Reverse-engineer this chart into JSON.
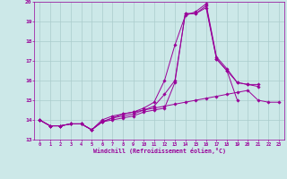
{
  "xlabel": "Windchill (Refroidissement éolien,°C)",
  "bg_color": "#cce8e8",
  "grid_color": "#aacccc",
  "line_color": "#990099",
  "xlim_min": -0.5,
  "xlim_max": 23.5,
  "ylim_min": 13,
  "ylim_max": 20,
  "xticks": [
    0,
    1,
    2,
    3,
    4,
    5,
    6,
    7,
    8,
    9,
    10,
    11,
    12,
    13,
    14,
    15,
    16,
    17,
    18,
    19,
    20,
    21,
    22,
    23
  ],
  "yticks": [
    13,
    14,
    15,
    16,
    17,
    18,
    19,
    20
  ],
  "lines": [
    [
      14.0,
      13.7,
      13.7,
      13.8,
      13.8,
      13.5,
      13.9,
      14.0,
      14.1,
      14.2,
      14.4,
      14.5,
      14.6,
      15.9,
      19.4,
      19.4,
      19.7,
      17.1,
      16.5,
      15.9,
      15.8,
      15.7,
      null,
      null
    ],
    [
      14.0,
      13.7,
      13.7,
      13.8,
      13.8,
      13.5,
      13.9,
      14.1,
      14.2,
      14.3,
      14.5,
      14.7,
      15.3,
      16.0,
      19.4,
      19.4,
      19.8,
      17.1,
      16.5,
      15.0,
      null,
      null,
      null,
      null
    ],
    [
      14.0,
      13.7,
      13.7,
      13.8,
      13.8,
      13.5,
      13.9,
      14.1,
      14.3,
      14.4,
      14.6,
      14.9,
      16.0,
      17.8,
      19.3,
      19.5,
      19.9,
      17.2,
      16.6,
      15.9,
      15.8,
      15.8,
      null,
      null
    ],
    [
      14.0,
      13.7,
      13.7,
      13.8,
      13.8,
      13.5,
      14.0,
      14.2,
      14.3,
      14.4,
      14.5,
      14.6,
      14.7,
      14.8,
      14.9,
      15.0,
      15.1,
      15.2,
      15.3,
      15.4,
      15.5,
      15.0,
      14.9,
      14.9
    ]
  ]
}
